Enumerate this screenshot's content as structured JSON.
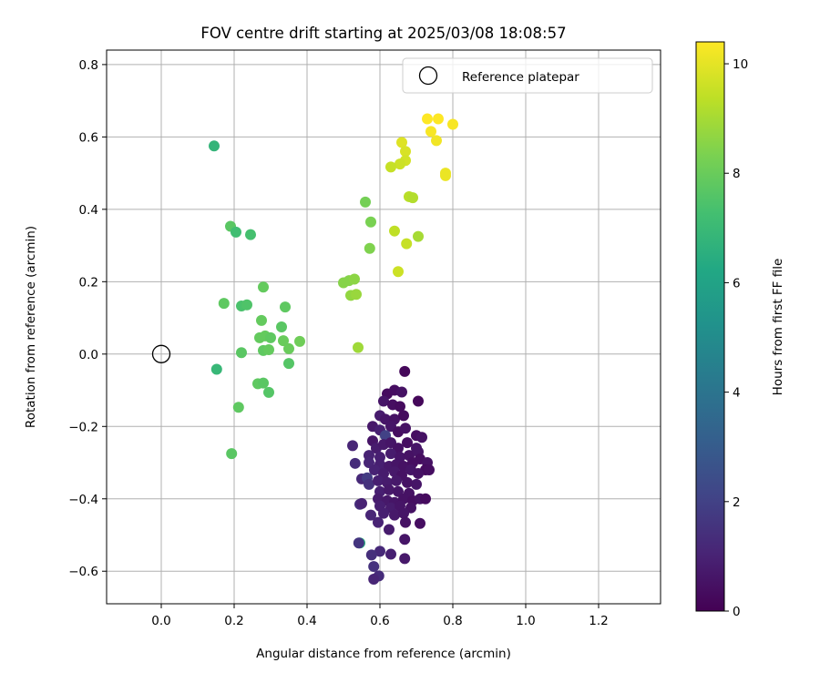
{
  "chart_data": {
    "type": "scatter",
    "title": "FOV centre drift starting at 2025/03/08 18:08:57",
    "xlabel": "Angular distance from reference (arcmin)",
    "ylabel": "Rotation from reference (arcmin)",
    "xlim": [
      -0.15,
      1.37
    ],
    "ylim": [
      -0.69,
      0.84
    ],
    "xticks": [
      0.0,
      0.2,
      0.4,
      0.6,
      0.8,
      1.0,
      1.2
    ],
    "xtick_labels": [
      "0.0",
      "0.2",
      "0.4",
      "0.6",
      "0.8",
      "1.0",
      "1.2"
    ],
    "yticks": [
      -0.6,
      -0.4,
      -0.2,
      0.0,
      0.2,
      0.4,
      0.6,
      0.8
    ],
    "ytick_labels": [
      "−0.6",
      "−0.4",
      "−0.2",
      "0.0",
      "0.2",
      "0.4",
      "0.6",
      "0.8"
    ],
    "grid": true,
    "legend": {
      "position": "top-right",
      "entries": [
        {
          "label": "Reference platepar",
          "marker": "open-circle"
        }
      ]
    },
    "reference_point": {
      "x": 0.0,
      "y": 0.0
    },
    "colorbar": {
      "label": "Hours from first FF file",
      "colormap": "viridis",
      "range": [
        0,
        10.4
      ],
      "ticks": [
        0,
        2,
        4,
        6,
        8,
        10
      ],
      "tick_labels": [
        "0",
        "2",
        "4",
        "6",
        "8",
        "10"
      ]
    },
    "points": [
      {
        "x": 0.73,
        "y": 0.65,
        "h": 10.4
      },
      {
        "x": 0.76,
        "y": 0.65,
        "h": 10.4
      },
      {
        "x": 0.8,
        "y": 0.635,
        "h": 10.3
      },
      {
        "x": 0.74,
        "y": 0.615,
        "h": 10.3
      },
      {
        "x": 0.755,
        "y": 0.59,
        "h": 10.2
      },
      {
        "x": 0.78,
        "y": 0.5,
        "h": 10.1
      },
      {
        "x": 0.78,
        "y": 0.493,
        "h": 10.1
      },
      {
        "x": 0.66,
        "y": 0.585,
        "h": 9.9
      },
      {
        "x": 0.67,
        "y": 0.56,
        "h": 9.8
      },
      {
        "x": 0.67,
        "y": 0.535,
        "h": 9.7
      },
      {
        "x": 0.655,
        "y": 0.525,
        "h": 9.6
      },
      {
        "x": 0.63,
        "y": 0.517,
        "h": 9.5
      },
      {
        "x": 0.68,
        "y": 0.435,
        "h": 9.3
      },
      {
        "x": 0.69,
        "y": 0.432,
        "h": 9.2
      },
      {
        "x": 0.64,
        "y": 0.34,
        "h": 9.4
      },
      {
        "x": 0.705,
        "y": 0.325,
        "h": 9.0
      },
      {
        "x": 0.673,
        "y": 0.305,
        "h": 9.5
      },
      {
        "x": 0.65,
        "y": 0.228,
        "h": 9.6
      },
      {
        "x": 0.56,
        "y": 0.42,
        "h": 8.2
      },
      {
        "x": 0.575,
        "y": 0.365,
        "h": 8.3
      },
      {
        "x": 0.572,
        "y": 0.292,
        "h": 8.4
      },
      {
        "x": 0.5,
        "y": 0.197,
        "h": 8.5
      },
      {
        "x": 0.515,
        "y": 0.203,
        "h": 8.5
      },
      {
        "x": 0.53,
        "y": 0.207,
        "h": 8.6
      },
      {
        "x": 0.52,
        "y": 0.162,
        "h": 8.7
      },
      {
        "x": 0.535,
        "y": 0.165,
        "h": 8.8
      },
      {
        "x": 0.54,
        "y": 0.018,
        "h": 8.9
      },
      {
        "x": 0.145,
        "y": 0.575,
        "h": 6.8
      },
      {
        "x": 0.19,
        "y": 0.353,
        "h": 7.7
      },
      {
        "x": 0.205,
        "y": 0.337,
        "h": 7.2
      },
      {
        "x": 0.245,
        "y": 0.33,
        "h": 7.3
      },
      {
        "x": 0.28,
        "y": 0.185,
        "h": 7.9
      },
      {
        "x": 0.172,
        "y": 0.14,
        "h": 7.8
      },
      {
        "x": 0.22,
        "y": 0.133,
        "h": 7.4
      },
      {
        "x": 0.235,
        "y": 0.136,
        "h": 7.5
      },
      {
        "x": 0.34,
        "y": 0.13,
        "h": 7.8
      },
      {
        "x": 0.275,
        "y": 0.093,
        "h": 7.9
      },
      {
        "x": 0.33,
        "y": 0.075,
        "h": 7.7
      },
      {
        "x": 0.27,
        "y": 0.045,
        "h": 7.9
      },
      {
        "x": 0.285,
        "y": 0.05,
        "h": 7.9
      },
      {
        "x": 0.3,
        "y": 0.045,
        "h": 7.8
      },
      {
        "x": 0.335,
        "y": 0.037,
        "h": 8.0
      },
      {
        "x": 0.38,
        "y": 0.035,
        "h": 8.1
      },
      {
        "x": 0.35,
        "y": 0.015,
        "h": 8.0
      },
      {
        "x": 0.28,
        "y": 0.01,
        "h": 7.8
      },
      {
        "x": 0.295,
        "y": 0.012,
        "h": 7.9
      },
      {
        "x": 0.22,
        "y": 0.004,
        "h": 7.7
      },
      {
        "x": 0.35,
        "y": -0.026,
        "h": 7.6
      },
      {
        "x": 0.152,
        "y": -0.042,
        "h": 6.9
      },
      {
        "x": 0.265,
        "y": -0.082,
        "h": 7.8
      },
      {
        "x": 0.28,
        "y": -0.08,
        "h": 7.7
      },
      {
        "x": 0.295,
        "y": -0.106,
        "h": 7.6
      },
      {
        "x": 0.212,
        "y": -0.147,
        "h": 7.8
      },
      {
        "x": 0.193,
        "y": -0.275,
        "h": 7.7
      },
      {
        "x": 0.545,
        "y": -0.522,
        "h": 6.5
      },
      {
        "x": 0.668,
        "y": -0.048,
        "h": 0.2
      },
      {
        "x": 0.62,
        "y": -0.11,
        "h": 0.3
      },
      {
        "x": 0.64,
        "y": -0.1,
        "h": 0.4
      },
      {
        "x": 0.66,
        "y": -0.105,
        "h": 0.5
      },
      {
        "x": 0.705,
        "y": -0.13,
        "h": 0.2
      },
      {
        "x": 0.61,
        "y": -0.13,
        "h": 0.6
      },
      {
        "x": 0.635,
        "y": -0.14,
        "h": 0.4
      },
      {
        "x": 0.655,
        "y": -0.145,
        "h": 0.3
      },
      {
        "x": 0.6,
        "y": -0.17,
        "h": 0.8
      },
      {
        "x": 0.615,
        "y": -0.18,
        "h": 0.6
      },
      {
        "x": 0.64,
        "y": -0.18,
        "h": 0.5
      },
      {
        "x": 0.665,
        "y": -0.17,
        "h": 0.3
      },
      {
        "x": 0.58,
        "y": -0.2,
        "h": 0.7
      },
      {
        "x": 0.6,
        "y": -0.21,
        "h": 0.9
      },
      {
        "x": 0.63,
        "y": -0.2,
        "h": 0.6
      },
      {
        "x": 0.65,
        "y": -0.215,
        "h": 0.4
      },
      {
        "x": 0.67,
        "y": -0.205,
        "h": 0.5
      },
      {
        "x": 0.615,
        "y": -0.225,
        "h": 2.0
      },
      {
        "x": 0.7,
        "y": -0.225,
        "h": 0.4
      },
      {
        "x": 0.715,
        "y": -0.23,
        "h": 0.5
      },
      {
        "x": 0.58,
        "y": -0.24,
        "h": 0.6
      },
      {
        "x": 0.59,
        "y": -0.26,
        "h": 0.8
      },
      {
        "x": 0.61,
        "y": -0.25,
        "h": 0.7
      },
      {
        "x": 0.63,
        "y": -0.245,
        "h": 0.6
      },
      {
        "x": 0.65,
        "y": -0.26,
        "h": 0.5
      },
      {
        "x": 0.675,
        "y": -0.245,
        "h": 0.4
      },
      {
        "x": 0.7,
        "y": -0.26,
        "h": 0.6
      },
      {
        "x": 0.525,
        "y": -0.253,
        "h": 1.1
      },
      {
        "x": 0.57,
        "y": -0.28,
        "h": 1.0
      },
      {
        "x": 0.6,
        "y": -0.285,
        "h": 0.9
      },
      {
        "x": 0.63,
        "y": -0.275,
        "h": 0.8
      },
      {
        "x": 0.655,
        "y": -0.285,
        "h": 0.6
      },
      {
        "x": 0.68,
        "y": -0.28,
        "h": 0.5
      },
      {
        "x": 0.705,
        "y": -0.27,
        "h": 0.6
      },
      {
        "x": 0.71,
        "y": -0.29,
        "h": 0.4
      },
      {
        "x": 0.532,
        "y": -0.302,
        "h": 1.3
      },
      {
        "x": 0.57,
        "y": -0.3,
        "h": 1.1
      },
      {
        "x": 0.6,
        "y": -0.305,
        "h": 0.9
      },
      {
        "x": 0.625,
        "y": -0.31,
        "h": 0.7
      },
      {
        "x": 0.645,
        "y": -0.305,
        "h": 0.6
      },
      {
        "x": 0.665,
        "y": -0.31,
        "h": 0.5
      },
      {
        "x": 0.69,
        "y": -0.3,
        "h": 0.4
      },
      {
        "x": 0.73,
        "y": -0.3,
        "h": 0.5
      },
      {
        "x": 0.725,
        "y": -0.32,
        "h": 0.3
      },
      {
        "x": 0.735,
        "y": -0.32,
        "h": 0.4
      },
      {
        "x": 0.585,
        "y": -0.32,
        "h": 1.0
      },
      {
        "x": 0.61,
        "y": -0.33,
        "h": 0.8
      },
      {
        "x": 0.64,
        "y": -0.325,
        "h": 0.7
      },
      {
        "x": 0.66,
        "y": -0.335,
        "h": 0.5
      },
      {
        "x": 0.685,
        "y": -0.32,
        "h": 0.6
      },
      {
        "x": 0.705,
        "y": -0.33,
        "h": 0.5
      },
      {
        "x": 0.55,
        "y": -0.345,
        "h": 1.2
      },
      {
        "x": 0.565,
        "y": -0.342,
        "h": 1.8
      },
      {
        "x": 0.57,
        "y": -0.36,
        "h": 1.5
      },
      {
        "x": 0.595,
        "y": -0.35,
        "h": 0.9
      },
      {
        "x": 0.62,
        "y": -0.355,
        "h": 0.8
      },
      {
        "x": 0.645,
        "y": -0.35,
        "h": 0.7
      },
      {
        "x": 0.675,
        "y": -0.355,
        "h": 0.5
      },
      {
        "x": 0.7,
        "y": -0.36,
        "h": 0.6
      },
      {
        "x": 0.6,
        "y": -0.38,
        "h": 0.9
      },
      {
        "x": 0.625,
        "y": -0.375,
        "h": 0.7
      },
      {
        "x": 0.65,
        "y": -0.38,
        "h": 0.6
      },
      {
        "x": 0.68,
        "y": -0.385,
        "h": 0.5
      },
      {
        "x": 0.595,
        "y": -0.4,
        "h": 0.8
      },
      {
        "x": 0.62,
        "y": -0.405,
        "h": 0.7
      },
      {
        "x": 0.64,
        "y": -0.41,
        "h": 0.6
      },
      {
        "x": 0.665,
        "y": -0.4,
        "h": 0.5
      },
      {
        "x": 0.69,
        "y": -0.405,
        "h": 0.4
      },
      {
        "x": 0.71,
        "y": -0.4,
        "h": 0.5
      },
      {
        "x": 0.725,
        "y": -0.4,
        "h": 0.3
      },
      {
        "x": 0.545,
        "y": -0.415,
        "h": 1.4
      },
      {
        "x": 0.55,
        "y": -0.413,
        "h": 1.0
      },
      {
        "x": 0.6,
        "y": -0.42,
        "h": 0.9
      },
      {
        "x": 0.63,
        "y": -0.425,
        "h": 0.8
      },
      {
        "x": 0.655,
        "y": -0.42,
        "h": 0.6
      },
      {
        "x": 0.685,
        "y": -0.425,
        "h": 0.5
      },
      {
        "x": 0.575,
        "y": -0.445,
        "h": 1.1
      },
      {
        "x": 0.61,
        "y": -0.44,
        "h": 0.9
      },
      {
        "x": 0.64,
        "y": -0.445,
        "h": 0.7
      },
      {
        "x": 0.665,
        "y": -0.44,
        "h": 0.6
      },
      {
        "x": 0.595,
        "y": -0.465,
        "h": 1.0
      },
      {
        "x": 0.67,
        "y": -0.465,
        "h": 0.5
      },
      {
        "x": 0.71,
        "y": -0.468,
        "h": 0.4
      },
      {
        "x": 0.625,
        "y": -0.485,
        "h": 0.8
      },
      {
        "x": 0.668,
        "y": -0.512,
        "h": 0.6
      },
      {
        "x": 0.542,
        "y": -0.522,
        "h": 1.6
      },
      {
        "x": 0.6,
        "y": -0.545,
        "h": 1.2
      },
      {
        "x": 0.63,
        "y": -0.553,
        "h": 0.9
      },
      {
        "x": 0.577,
        "y": -0.555,
        "h": 1.4
      },
      {
        "x": 0.668,
        "y": -0.565,
        "h": 0.7
      },
      {
        "x": 0.583,
        "y": -0.587,
        "h": 1.5
      },
      {
        "x": 0.597,
        "y": -0.613,
        "h": 1.3
      },
      {
        "x": 0.583,
        "y": -0.622,
        "h": 1.1
      }
    ]
  }
}
